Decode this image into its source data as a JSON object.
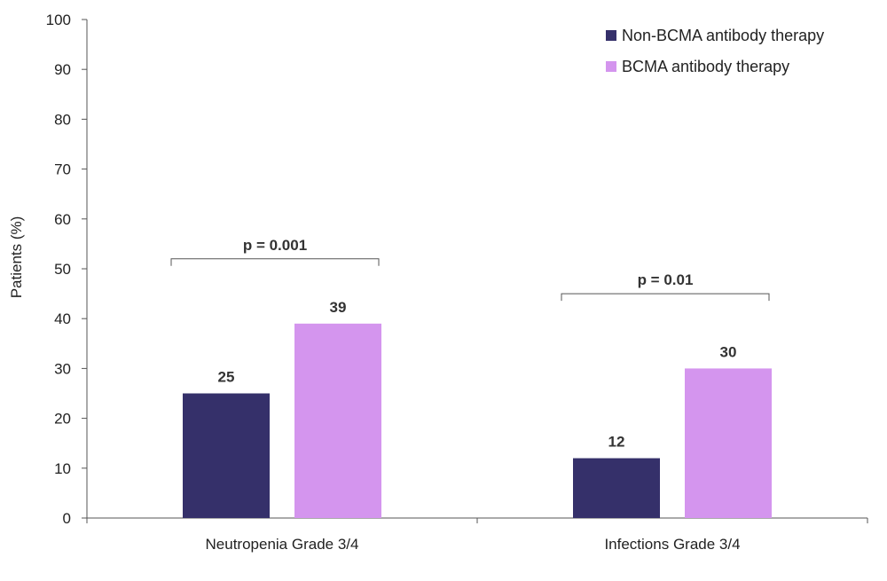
{
  "chart_data": {
    "type": "bar",
    "title": "",
    "xlabel": "",
    "ylabel": "Patients (%)",
    "ylim": [
      0,
      100
    ],
    "yticks": [
      0,
      10,
      20,
      30,
      40,
      50,
      60,
      70,
      80,
      90,
      100
    ],
    "categories": [
      "Neutropenia Grade 3/4",
      "Infections Grade 3/4"
    ],
    "series": [
      {
        "name": "Non-BCMA antibody therapy",
        "color": "#35306a",
        "values": [
          25,
          12
        ]
      },
      {
        "name": "BCMA antibody therapy",
        "color": "#d495ee",
        "values": [
          39,
          30
        ]
      }
    ],
    "annotations": [
      {
        "category_index": 0,
        "text": "p = 0.001",
        "level": 52
      },
      {
        "category_index": 1,
        "text": "p = 0.01",
        "level": 45
      }
    ],
    "legend_position": "top-right",
    "grid": false
  }
}
